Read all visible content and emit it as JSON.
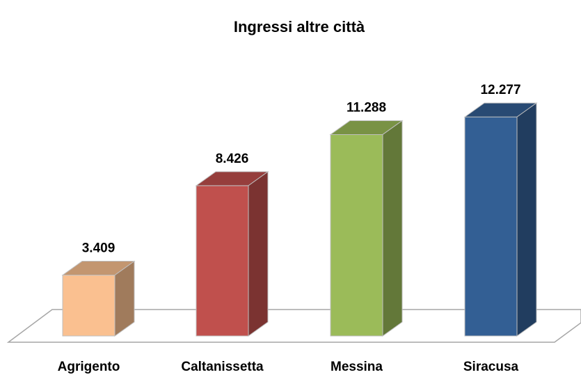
{
  "chart_data": {
    "type": "bar3d",
    "title": "Ingressi altre città",
    "categories": [
      "Agrigento",
      "Caltanissetta",
      "Messina",
      "Siracusa"
    ],
    "values": [
      3409,
      8426,
      11288,
      12277
    ],
    "value_labels": [
      "3.409",
      "8.426",
      "11.288",
      "12.277"
    ],
    "colors": [
      "#fac090",
      "#c0504d",
      "#9bbb59",
      "#335f94"
    ]
  }
}
